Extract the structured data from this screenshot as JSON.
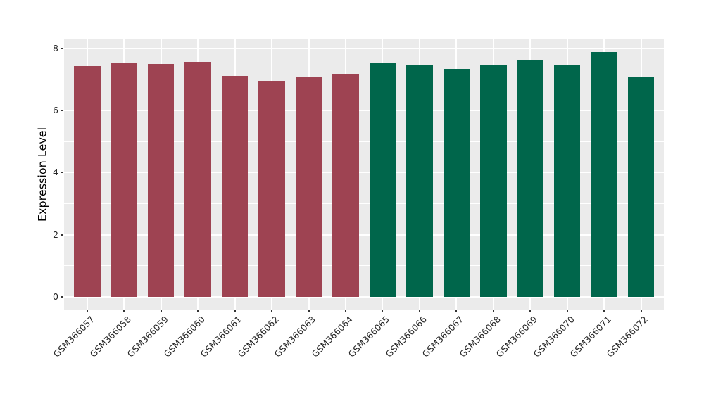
{
  "chart_data": {
    "type": "bar",
    "title": "",
    "xlabel": "",
    "ylabel": "Expression Level",
    "ylim": [
      0,
      8.3
    ],
    "yticks_major": [
      0,
      2,
      4,
      6,
      8
    ],
    "yticks_minor": [
      1,
      3,
      5,
      7
    ],
    "grid": "white major+minor horizontal and major vertical gridlines on gray panel",
    "legend_position": "none",
    "categories": [
      "GSM366057",
      "GSM366058",
      "GSM366059",
      "GSM366060",
      "GSM366061",
      "GSM366062",
      "GSM366063",
      "GSM366064",
      "GSM366065",
      "GSM366066",
      "GSM366067",
      "GSM366068",
      "GSM366069",
      "GSM366070",
      "GSM366071",
      "GSM366072"
    ],
    "values": [
      7.43,
      7.55,
      7.5,
      7.57,
      7.12,
      6.95,
      7.07,
      7.18,
      7.53,
      7.48,
      7.33,
      7.46,
      7.6,
      7.48,
      7.87,
      7.07
    ],
    "bar_colors": [
      "#9e4352",
      "#9e4352",
      "#9e4352",
      "#9e4352",
      "#9e4352",
      "#9e4352",
      "#9e4352",
      "#9e4352",
      "#00664b",
      "#00664b",
      "#00664b",
      "#00664b",
      "#00664b",
      "#00664b",
      "#00664b",
      "#00664b"
    ],
    "group_colors": {
      "first_eight_samples": "#9e4352",
      "last_eight_samples": "#00664b"
    }
  },
  "style": {
    "page_background": "#ffffff",
    "panel_background": "#ebebeb",
    "gridline_color": "#ffffff",
    "axis_text_color": "#262626",
    "axis_title_color": "#000000",
    "tick_mark_color": "#333333"
  }
}
